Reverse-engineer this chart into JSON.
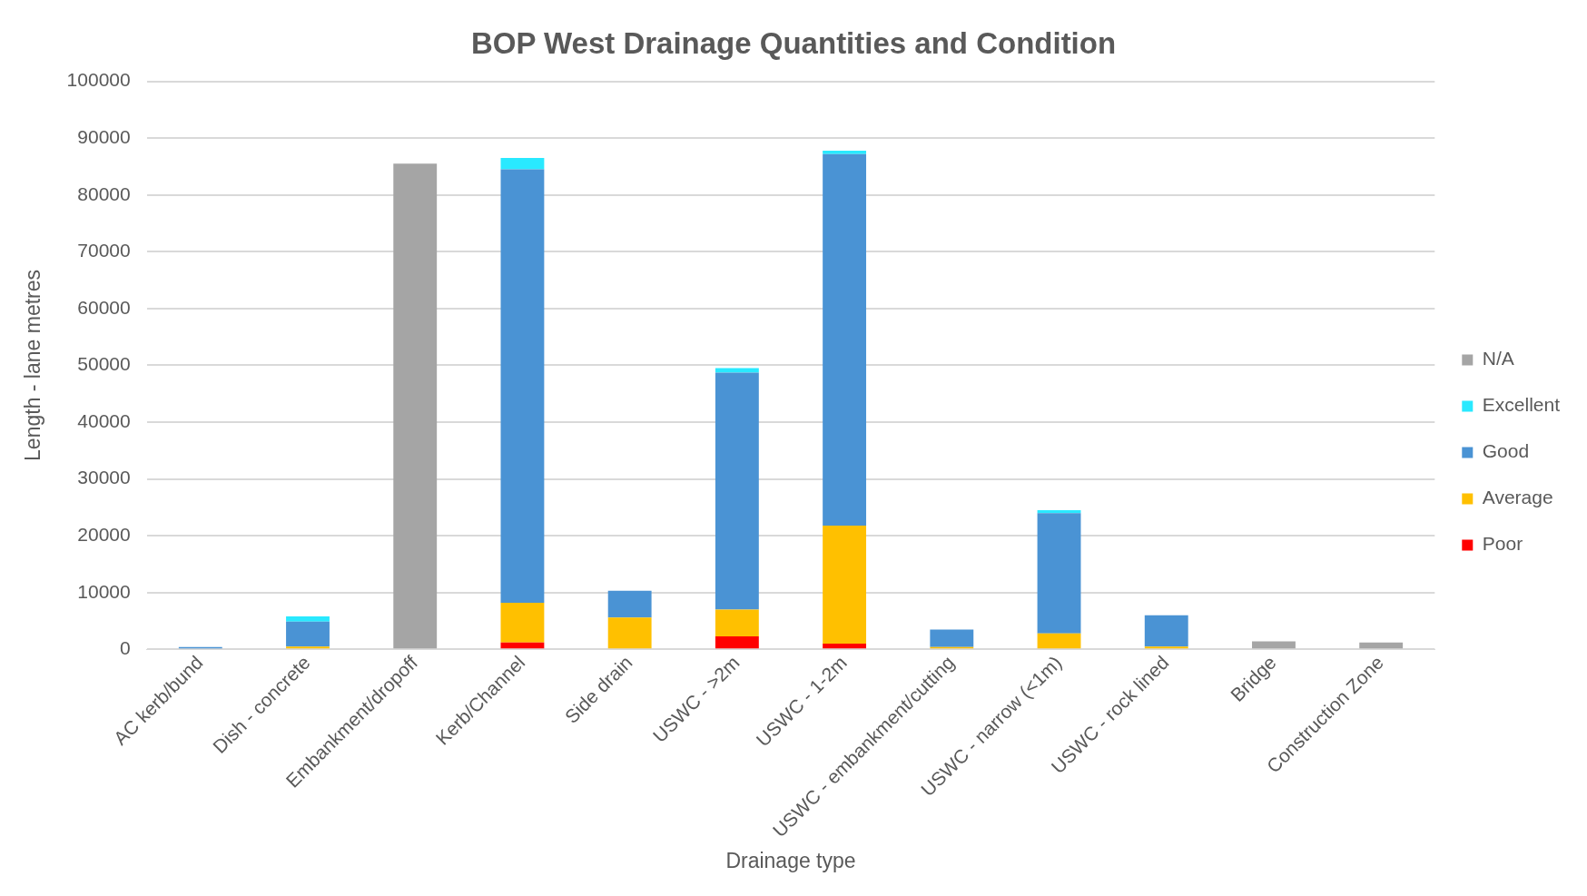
{
  "chart_data": {
    "type": "bar",
    "title": "BOP West Drainage Quantities and Condition",
    "xlabel": "Drainage type",
    "ylabel": "Length - lane metres",
    "categories": [
      "AC kerb/bund",
      "Dish - concrete",
      "Embankment/dropoff",
      "Kerb/Channel",
      "Side drain",
      "USWC - >2m",
      "USWC - 1-2m",
      "USWC - embankment/cutting",
      "USWC - narrow (<1m)",
      "USWC - rock lined",
      "Bridge",
      "Construction Zone"
    ],
    "stacked": true,
    "series": [
      {
        "name": "Poor",
        "color": "#ff0000",
        "values": [
          0,
          0,
          0,
          1200,
          null,
          2300,
          1000,
          0,
          0,
          0,
          0,
          0
        ]
      },
      {
        "name": "Average",
        "color": "#ffc000",
        "values": [
          0,
          500,
          0,
          7000,
          5600,
          4700,
          20800,
          400,
          2800,
          500,
          0,
          0
        ]
      },
      {
        "name": "Good",
        "color": "#4a93d4",
        "values": [
          400,
          4400,
          0,
          76300,
          4700,
          41700,
          65400,
          3100,
          21200,
          5500,
          0,
          0
        ]
      },
      {
        "name": "Excellent",
        "color": "#29e9ff",
        "values": [
          0,
          900,
          0,
          2000,
          0,
          800,
          600,
          0,
          500,
          0,
          0,
          0
        ]
      },
      {
        "name": "N/A",
        "color": "#a5a5a5",
        "values": [
          0,
          0,
          85500,
          0,
          0,
          0,
          0,
          0,
          0,
          0,
          1400,
          1200
        ]
      }
    ],
    "ylim": [
      0,
      100000
    ],
    "yticks": [
      0,
      10000,
      20000,
      30000,
      40000,
      50000,
      60000,
      70000,
      80000,
      90000,
      100000
    ],
    "grid": "y",
    "legend": "right"
  }
}
